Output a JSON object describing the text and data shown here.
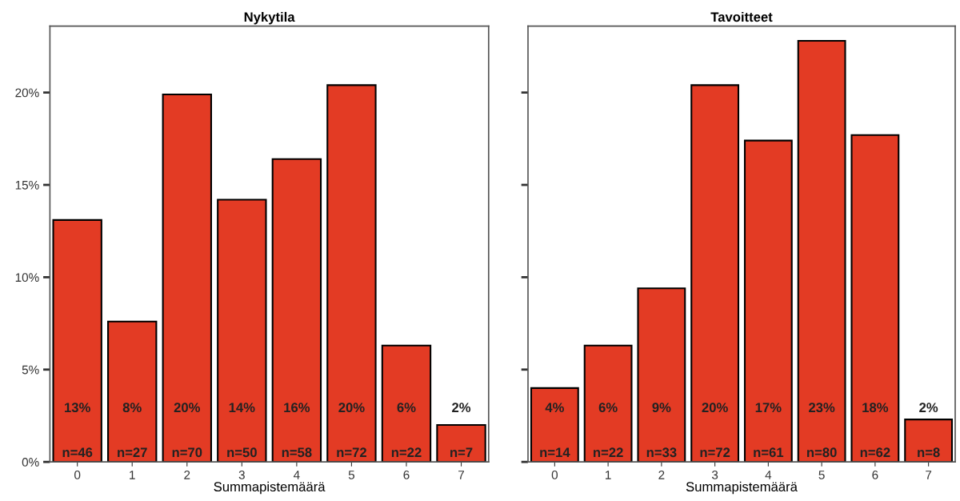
{
  "chart_data": [
    {
      "type": "bar",
      "title": "Nykytila",
      "xlabel": "Summapistemäärä",
      "categories": [
        "0",
        "1",
        "2",
        "3",
        "4",
        "5",
        "6",
        "7"
      ],
      "values": [
        13.1,
        7.6,
        19.9,
        14.2,
        16.4,
        20.4,
        6.3,
        2.0
      ],
      "value_labels": [
        "13%\n\nn=46",
        "8%\n\nn=27",
        "20%\n\nn=70",
        "14%\n\nn=50",
        "16%\n\nn=58",
        "20%\n\nn=72",
        "6%\n\nn=22",
        "2%\n\nn=7"
      ],
      "color": "#e33b24",
      "ylim": [
        0,
        23.6
      ],
      "yticks": [
        {
          "value": 0,
          "label": "0%"
        },
        {
          "value": 5,
          "label": "5%"
        },
        {
          "value": 10,
          "label": "10%"
        },
        {
          "value": 15,
          "label": "15%"
        },
        {
          "value": 20,
          "label": "20%"
        }
      ],
      "grid": false
    },
    {
      "type": "bar",
      "title": "Tavoitteet",
      "xlabel": "Summapistemäärä",
      "categories": [
        "0",
        "1",
        "2",
        "3",
        "4",
        "5",
        "6",
        "7"
      ],
      "values": [
        4.0,
        6.3,
        9.4,
        20.4,
        17.4,
        22.8,
        17.7,
        2.3
      ],
      "value_labels": [
        "4%\n\nn=14",
        "6%\n\nn=22",
        "9%\n\nn=33",
        "20%\n\nn=72",
        "17%\n\nn=61",
        "23%\n\nn=80",
        "18%\n\nn=62",
        "2%\n\nn=8"
      ],
      "color": "#e33b24",
      "ylim": [
        0,
        23.6
      ],
      "yticks": [
        {
          "value": 0,
          "label": null
        },
        {
          "value": 5,
          "label": null
        },
        {
          "value": 10,
          "label": null
        },
        {
          "value": 15,
          "label": null
        },
        {
          "value": 20,
          "label": null
        }
      ],
      "grid": false,
      "tick_labels": "x"
    }
  ]
}
